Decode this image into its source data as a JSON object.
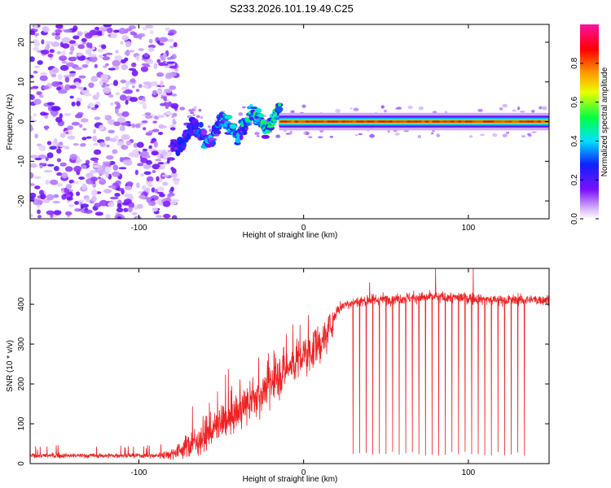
{
  "title": "S233.2026.101.19.49.C25",
  "colors": {
    "trace": "#ee2222",
    "axis": "#000000",
    "background": "#ffffff"
  },
  "chart_data": [
    {
      "type": "heatmap",
      "title": "S233.2026.101.19.49.C25",
      "xlabel": "Height of straight line (km)",
      "ylabel": "Frequency (Hz)",
      "xlim": [
        -166,
        149
      ],
      "ylim": [
        -24.5,
        24.5
      ],
      "xticks": [
        -100,
        0,
        100
      ],
      "xtick_labels": [
        "-100",
        "0",
        "100"
      ],
      "yticks": [
        -20,
        -10,
        0,
        10,
        20
      ],
      "ytick_labels": [
        "-20",
        "-10",
        "0",
        "10",
        "20"
      ],
      "colorbar": {
        "label": "Normalized spectral amplitude",
        "range": [
          0,
          1
        ],
        "ticks": [
          0.0,
          0.2,
          0.4,
          0.6,
          0.8
        ],
        "tick_labels": [
          "0.0",
          "0.2",
          "0.4",
          "0.6",
          "0.8"
        ],
        "colormap": "rainbow (lavender → purple → blue → cyan → green → yellow → orange → red → magenta)"
      },
      "description_of_field": {
        "noise_region_km": [
          -166,
          -80
        ],
        "noise_amplitude": 0.15,
        "onset_km": -80,
        "transition_region_km": [
          -80,
          -15
        ],
        "transition_peak_frequency_hz": [
          -5,
          3
        ],
        "carrier_region_km": [
          -15,
          149
        ],
        "carrier_frequency_hz": 0,
        "carrier_amplitude": 0.9
      }
    },
    {
      "type": "line",
      "xlabel": "Height of straight line (km)",
      "ylabel": "SNR (10 * v/v)",
      "xlim": [
        -166,
        149
      ],
      "ylim": [
        0,
        490
      ],
      "xticks": [
        -100,
        0,
        100
      ],
      "xtick_labels": [
        "-100",
        "0",
        "100"
      ],
      "yticks": [
        0,
        100,
        200,
        300,
        400
      ],
      "ytick_labels": [
        "0",
        "100",
        "200",
        "300",
        "400"
      ],
      "series": [
        {
          "name": "SNR",
          "anchor_x": [
            -166,
            -90,
            -80,
            -70,
            -60,
            -50,
            -40,
            -30,
            -20,
            -10,
            0,
            10,
            15,
            18,
            20,
            25,
            30,
            40,
            60,
            80,
            100,
            120,
            149
          ],
          "anchor_y": [
            20,
            20,
            25,
            45,
            70,
            100,
            130,
            160,
            200,
            240,
            270,
            300,
            330,
            360,
            385,
            400,
            405,
            410,
            415,
            418,
            415,
            410,
            412
          ],
          "noise_sd": [
            5,
            5,
            12,
            25,
            35,
            40,
            40,
            40,
            45,
            45,
            45,
            40,
            35,
            25,
            15,
            12,
            12,
            12,
            12,
            12,
            12,
            12,
            12
          ],
          "dropouts_x": [
            30,
            34,
            38,
            42,
            46,
            50,
            54,
            58,
            62,
            66,
            70,
            74,
            78,
            82,
            86,
            90,
            94,
            98,
            102,
            106,
            110,
            114,
            118,
            122,
            126,
            130,
            134
          ],
          "dropout_floor": 20,
          "spikes": [
            [
              80,
              490
            ],
            [
              103,
              490
            ],
            [
              15,
              355
            ],
            [
              40,
              455
            ]
          ]
        }
      ]
    }
  ]
}
